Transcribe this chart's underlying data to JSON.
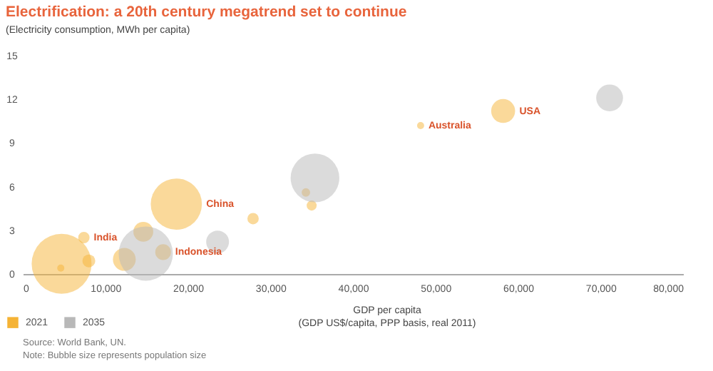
{
  "chart_data": {
    "type": "bubble",
    "title": "Electrification: a 20th century megatrend set to continue",
    "subtitle": "(Electricity consumption, MWh per capita)",
    "xlabel": "GDP per capita\n(GDP US$/capita, PPP basis, real 2011)",
    "xlim": [
      0,
      80000
    ],
    "xticks": [
      0,
      {
        "value": 10000,
        "label": "10,000"
      },
      {
        "value": 20000,
        "label": "20,000"
      },
      {
        "value": 30000,
        "label": "30,000"
      },
      {
        "value": 40000,
        "label": "40,000"
      },
      {
        "value": 50000,
        "label": "50,000"
      },
      {
        "value": 60000,
        "label": "60,000"
      },
      {
        "value": 70000,
        "label": "70,000"
      },
      {
        "value": 80000,
        "label": "80,000"
      }
    ],
    "ylim": [
      0,
      15
    ],
    "yticks": [
      0,
      3,
      6,
      9,
      12,
      15
    ],
    "grid": false,
    "legend": "bottom left",
    "marker": "circle",
    "series": [
      {
        "name": "2021",
        "color": "#f5b335",
        "x": [
          4700,
          7400,
          8000,
          4600,
          14600,
          17000,
          12300,
          18600,
          27900,
          34300,
          35000,
          48200,
          58200
        ],
        "values": [
          0.7,
          2.5,
          0.9,
          0.4,
          2.9,
          1.5,
          1.0,
          4.8,
          3.8,
          5.6,
          4.7,
          10.2,
          11.2
        ],
        "sizes": [
          1,
          0.036,
          0.046,
          0.014,
          0.11,
          0.069,
          0.145,
          0.73,
          0.036,
          0.02,
          0.028,
          0.014,
          0.16
        ]
      },
      {
        "name": "2035",
        "color": "#b8b8b8",
        "x": [
          14900,
          23600,
          35400,
          71100
        ],
        "values": [
          1.4,
          2.2,
          6.6,
          12.1
        ],
        "sizes": [
          0.82,
          0.145,
          0.66,
          0.2
        ]
      }
    ],
    "annotations": [
      {
        "text": "India",
        "x": 7400,
        "y": 2.5
      },
      {
        "text": "Indonesia",
        "x": 17000,
        "y": 1.5
      },
      {
        "text": "China",
        "x": 18600,
        "y": 4.8
      },
      {
        "text": "Australia",
        "x": 48200,
        "y": 10.2
      },
      {
        "text": "USA",
        "x": 58200,
        "y": 11.2
      },
      "Source: World Bank, UN.",
      "Note: Bubble size represents population size"
    ]
  }
}
